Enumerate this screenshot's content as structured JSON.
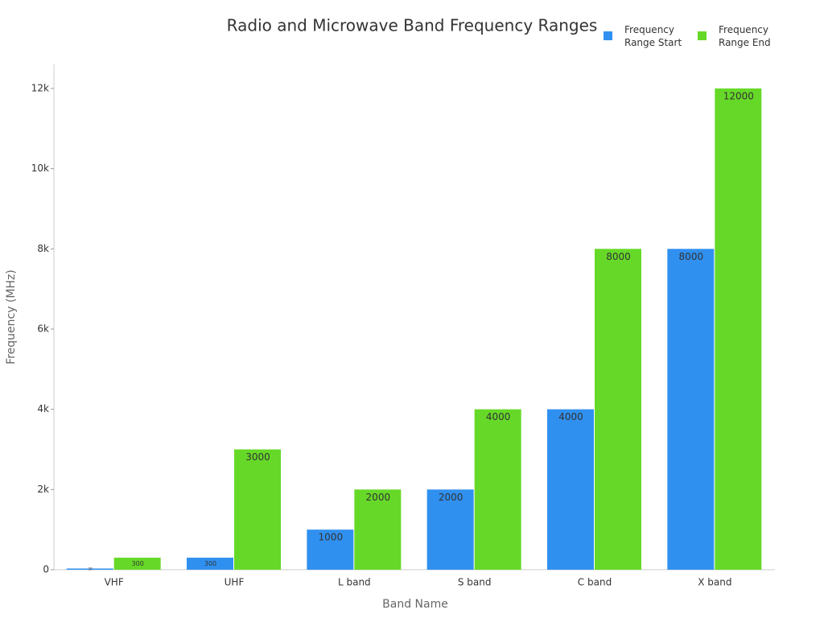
{
  "chart_data": {
    "type": "bar",
    "title": "Radio and Microwave Band Frequency Ranges",
    "x_label": "Band Name",
    "y_label": "Frequency (MHz)",
    "categories": [
      "VHF",
      "UHF",
      "L band",
      "S band",
      "C band",
      "X band"
    ],
    "series": [
      {
        "name": "Frequency Range Start",
        "color": "#3090f0",
        "values": [
          30,
          300,
          1000,
          2000,
          4000,
          8000
        ]
      },
      {
        "name": "Frequency Range End",
        "color": "#66d928",
        "values": [
          300,
          3000,
          2000,
          4000,
          8000,
          12000
        ]
      }
    ],
    "ylim": [
      0,
      12600
    ],
    "yticks": [
      0,
      {
        "value": 2000,
        "label": "2k"
      },
      {
        "value": 4000,
        "label": "4k"
      },
      {
        "value": 6000,
        "label": "6k"
      },
      {
        "value": 8000,
        "label": "8k"
      },
      {
        "value": 10000,
        "label": "10k"
      },
      {
        "value": 12000,
        "label": "12k"
      }
    ],
    "legend_position": "top-right"
  }
}
